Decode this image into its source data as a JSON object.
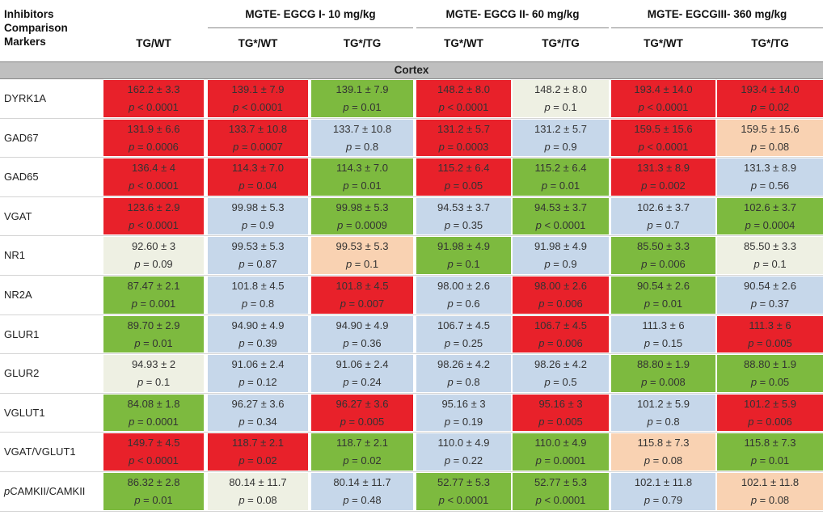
{
  "header": {
    "inhibitors_label": "Inhibitors",
    "comparison_label": "Comparison",
    "markers_label": "Markers",
    "group1": "MGTE- EGCG I- 10 mg/kg",
    "group2": "MGTE- EGCG II- 60 mg/kg",
    "group3": "MGTE- EGCGIII- 360 mg/kg",
    "col_tgwt": "TG/WT",
    "col_tgs_wt": "TG*/WT",
    "col_tgs_tg": "TG*/TG"
  },
  "section_title": "Cortex",
  "colors": {
    "red": "#e8212a",
    "green": "#7dba3f",
    "blue": "#c6d7ea",
    "cream": "#eef0e3",
    "peach": "#f9d2b2"
  },
  "rows": [
    {
      "label": "DYRK1A",
      "cells": [
        {
          "v": "162.2 ± 3.3",
          "p": "< 0.0001",
          "c": "red"
        },
        {
          "v": "139.1 ± 7.9",
          "p": "< 0.0001",
          "c": "red"
        },
        {
          "v": "139.1 ± 7.9",
          "p": "= 0.01",
          "c": "green"
        },
        {
          "v": "148.2 ± 8.0",
          "p": "< 0.0001",
          "c": "red"
        },
        {
          "v": "148.2 ± 8.0",
          "p": "= 0.1",
          "c": "cream"
        },
        {
          "v": "193.4 ± 14.0",
          "p": "< 0.0001",
          "c": "red"
        },
        {
          "v": "193.4 ± 14.0",
          "p": "= 0.02",
          "c": "red"
        }
      ]
    },
    {
      "label": "GAD67",
      "cells": [
        {
          "v": "131.9 ± 6.6",
          "p": "= 0.0006",
          "c": "red"
        },
        {
          "v": "133.7 ± 10.8",
          "p": "= 0.0007",
          "c": "red"
        },
        {
          "v": "133.7 ± 10.8",
          "p": "= 0.8",
          "c": "blue"
        },
        {
          "v": "131.2 ± 5.7",
          "p": "= 0.0003",
          "c": "red"
        },
        {
          "v": "131.2 ± 5.7",
          "p": "= 0.9",
          "c": "blue"
        },
        {
          "v": "159.5 ± 15.6",
          "p": "< 0.0001",
          "c": "red"
        },
        {
          "v": "159.5 ± 15.6",
          "p": "= 0.08",
          "c": "peach"
        }
      ]
    },
    {
      "label": "GAD65",
      "cells": [
        {
          "v": "136.4 ± 4",
          "p": "< 0.0001",
          "c": "red"
        },
        {
          "v": "114.3 ± 7.0",
          "p": "= 0.04",
          "c": "red"
        },
        {
          "v": "114.3 ± 7.0",
          "p": "= 0.01",
          "c": "green"
        },
        {
          "v": "115.2 ± 6.4",
          "p": "= 0.05",
          "c": "red"
        },
        {
          "v": "115.2 ± 6.4",
          "p": "= 0.01",
          "c": "green"
        },
        {
          "v": "131.3 ± 8.9",
          "p": "= 0.002",
          "c": "red"
        },
        {
          "v": "131.3 ± 8.9",
          "p": "= 0.56",
          "c": "blue"
        }
      ]
    },
    {
      "label": "VGAT",
      "cells": [
        {
          "v": "123.6 ± 2.9",
          "p": "< 0.0001",
          "c": "red"
        },
        {
          "v": "99.98 ± 5.3",
          "p": "= 0.9",
          "c": "blue"
        },
        {
          "v": "99.98 ± 5.3",
          "p": "= 0.0009",
          "c": "green"
        },
        {
          "v": "94.53 ± 3.7",
          "p": "= 0.35",
          "c": "blue"
        },
        {
          "v": "94.53 ± 3.7",
          "p": "< 0.0001",
          "c": "green"
        },
        {
          "v": "102.6 ± 3.7",
          "p": "= 0.7",
          "c": "blue"
        },
        {
          "v": "102.6 ± 3.7",
          "p": "= 0.0004",
          "c": "green"
        }
      ]
    },
    {
      "label": "NR1",
      "cells": [
        {
          "v": "92.60 ± 3",
          "p": "= 0.09",
          "c": "cream"
        },
        {
          "v": "99.53 ± 5.3",
          "p": "= 0.87",
          "c": "blue"
        },
        {
          "v": "99.53 ± 5.3",
          "p": "= 0.1",
          "c": "peach"
        },
        {
          "v": "91.98 ± 4.9",
          "p": "= 0.1",
          "c": "green"
        },
        {
          "v": "91.98 ± 4.9",
          "p": "= 0.9",
          "c": "blue"
        },
        {
          "v": "85.50 ± 3.3",
          "p": "= 0.006",
          "c": "green"
        },
        {
          "v": "85.50 ± 3.3",
          "p": "= 0.1",
          "c": "cream"
        }
      ]
    },
    {
      "label": "NR2A",
      "cells": [
        {
          "v": "87.47 ± 2.1",
          "p": "= 0.001",
          "c": "green"
        },
        {
          "v": "101.8 ± 4.5",
          "p": "= 0.8",
          "c": "blue"
        },
        {
          "v": "101.8 ± 4.5",
          "p": "= 0.007",
          "c": "red"
        },
        {
          "v": "98.00 ± 2.6",
          "p": "= 0.6",
          "c": "blue"
        },
        {
          "v": "98.00 ± 2.6",
          "p": "= 0.006",
          "c": "red"
        },
        {
          "v": "90.54 ± 2.6",
          "p": "= 0.01",
          "c": "green"
        },
        {
          "v": "90.54 ± 2.6",
          "p": "= 0.37",
          "c": "blue"
        }
      ]
    },
    {
      "label": "GLUR1",
      "cells": [
        {
          "v": "89.70 ± 2.9",
          "p": "= 0.01",
          "c": "green"
        },
        {
          "v": "94.90 ± 4.9",
          "p": "= 0.39",
          "c": "blue"
        },
        {
          "v": "94.90 ± 4.9",
          "p": "= 0.36",
          "c": "blue"
        },
        {
          "v": "106.7 ± 4.5",
          "p": "= 0.25",
          "c": "blue"
        },
        {
          "v": "106.7 ± 4.5",
          "p": "= 0.006",
          "c": "red"
        },
        {
          "v": "111.3 ± 6",
          "p": "= 0.15",
          "c": "blue"
        },
        {
          "v": "111.3 ± 6",
          "p": "= 0.005",
          "c": "red"
        }
      ]
    },
    {
      "label": "GLUR2",
      "cells": [
        {
          "v": "94.93 ± 2",
          "p": "= 0.1",
          "c": "cream"
        },
        {
          "v": "91.06 ± 2.4",
          "p": "= 0.12",
          "c": "blue"
        },
        {
          "v": "91.06 ± 2.4",
          "p": "= 0.24",
          "c": "blue"
        },
        {
          "v": "98.26 ± 4.2",
          "p": "= 0.8",
          "c": "blue"
        },
        {
          "v": "98.26 ± 4.2",
          "p": "= 0.5",
          "c": "blue"
        },
        {
          "v": "88.80 ± 1.9",
          "p": "= 0.008",
          "c": "green"
        },
        {
          "v": "88.80 ± 1.9",
          "p": "= 0.05",
          "c": "green"
        }
      ]
    },
    {
      "label": "VGLUT1",
      "cells": [
        {
          "v": "84.08 ± 1.8",
          "p": "= 0.0001",
          "c": "green"
        },
        {
          "v": "96.27 ± 3.6",
          "p": "= 0.34",
          "c": "blue"
        },
        {
          "v": "96.27 ± 3.6",
          "p": "= 0.005",
          "c": "red"
        },
        {
          "v": "95.16 ± 3",
          "p": "= 0.19",
          "c": "blue"
        },
        {
          "v": "95.16 ± 3",
          "p": "= 0.005",
          "c": "red"
        },
        {
          "v": "101.2 ± 5.9",
          "p": "= 0.8",
          "c": "blue"
        },
        {
          "v": "101.2 ± 5.9",
          "p": "= 0.006",
          "c": "red"
        }
      ]
    },
    {
      "label": "VGAT/VGLUT1",
      "cells": [
        {
          "v": "149.7 ± 4.5",
          "p": "< 0.0001",
          "c": "red"
        },
        {
          "v": "118.7 ± 2.1",
          "p": "= 0.02",
          "c": "red"
        },
        {
          "v": "118.7 ± 2.1",
          "p": "= 0.02",
          "c": "green"
        },
        {
          "v": "110.0 ± 4.9",
          "p": "= 0.22",
          "c": "blue"
        },
        {
          "v": "110.0 ± 4.9",
          "p": "= 0.0001",
          "c": "green"
        },
        {
          "v": "115.8 ± 7.3",
          "p": "= 0.08",
          "c": "peach"
        },
        {
          "v": "115.8 ± 7.3",
          "p": "= 0.01",
          "c": "green"
        }
      ]
    },
    {
      "label": "pCAMKII/CAMKII",
      "cells": [
        {
          "v": "86.32 ± 2.8",
          "p": "= 0.01",
          "c": "green"
        },
        {
          "v": "80.14 ± 11.7",
          "p": "= 0.08",
          "c": "cream"
        },
        {
          "v": "80.14 ± 11.7",
          "p": "= 0.48",
          "c": "blue"
        },
        {
          "v": "52.77 ± 5.3",
          "p": "< 0.0001",
          "c": "green"
        },
        {
          "v": "52.77 ± 5.3",
          "p": "< 0.0001",
          "c": "green"
        },
        {
          "v": "102.1 ± 11.8",
          "p": "= 0.79",
          "c": "blue"
        },
        {
          "v": "102.1 ± 11.8",
          "p": "= 0.08",
          "c": "peach"
        }
      ]
    }
  ]
}
